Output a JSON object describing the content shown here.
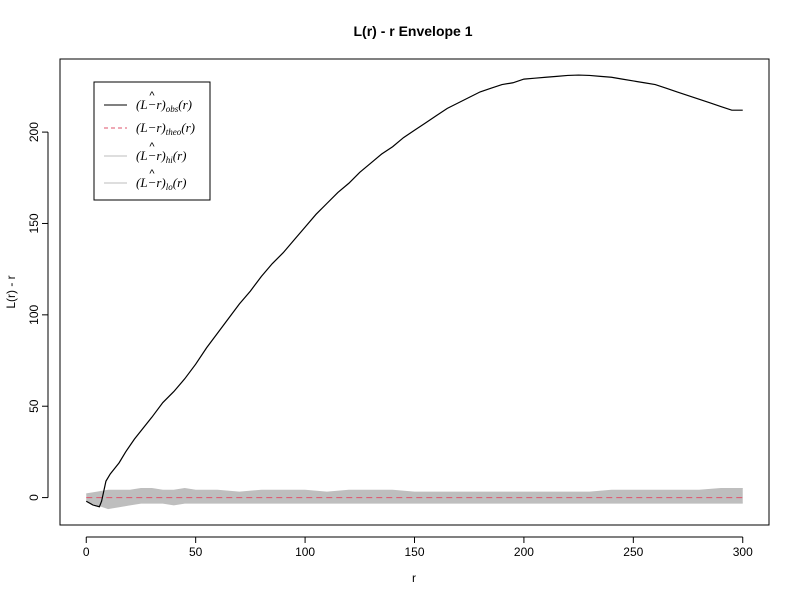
{
  "chart_data": {
    "type": "line",
    "title": "L(r) - r Envelope 1",
    "xlabel": "r",
    "ylabel": "L(r) - r",
    "xlim": [
      -12,
      312
    ],
    "ylim": [
      -15,
      240
    ],
    "x_ticks": [
      0,
      50,
      100,
      150,
      200,
      250,
      300
    ],
    "y_ticks": [
      0,
      50,
      100,
      150,
      200
    ],
    "grid": false,
    "legend_position": "top-left",
    "series": [
      {
        "name": "obs",
        "color": "#000000",
        "dash": "solid",
        "points": [
          [
            0,
            -2
          ],
          [
            3,
            -4
          ],
          [
            6,
            -5
          ],
          [
            7,
            -2
          ],
          [
            9,
            9
          ],
          [
            11,
            13
          ],
          [
            13,
            16
          ],
          [
            15,
            19
          ],
          [
            18,
            25
          ],
          [
            22,
            32
          ],
          [
            26,
            38
          ],
          [
            30,
            44
          ],
          [
            35,
            52
          ],
          [
            40,
            58
          ],
          [
            45,
            65
          ],
          [
            50,
            73
          ],
          [
            55,
            82
          ],
          [
            60,
            90
          ],
          [
            65,
            98
          ],
          [
            70,
            106
          ],
          [
            75,
            113
          ],
          [
            80,
            121
          ],
          [
            85,
            128
          ],
          [
            90,
            134
          ],
          [
            95,
            141
          ],
          [
            100,
            148
          ],
          [
            105,
            155
          ],
          [
            110,
            161
          ],
          [
            115,
            167
          ],
          [
            120,
            172
          ],
          [
            125,
            178
          ],
          [
            130,
            183
          ],
          [
            135,
            188
          ],
          [
            140,
            192
          ],
          [
            145,
            197
          ],
          [
            150,
            201
          ],
          [
            155,
            205
          ],
          [
            160,
            209
          ],
          [
            165,
            213
          ],
          [
            170,
            216
          ],
          [
            175,
            219
          ],
          [
            180,
            222
          ],
          [
            185,
            224
          ],
          [
            190,
            226
          ],
          [
            195,
            227
          ],
          [
            200,
            229
          ],
          [
            205,
            229.5
          ],
          [
            210,
            230
          ],
          [
            215,
            230.5
          ],
          [
            220,
            231
          ],
          [
            225,
            231.2
          ],
          [
            230,
            231
          ],
          [
            235,
            230.5
          ],
          [
            240,
            230
          ],
          [
            245,
            229
          ],
          [
            250,
            228
          ],
          [
            255,
            227
          ],
          [
            260,
            226
          ],
          [
            265,
            224
          ],
          [
            270,
            222
          ],
          [
            275,
            220
          ],
          [
            280,
            218
          ],
          [
            285,
            216
          ],
          [
            290,
            214
          ],
          [
            295,
            212
          ],
          [
            300,
            212
          ]
        ]
      },
      {
        "name": "theo",
        "color": "#df536b",
        "dash": "dashed",
        "points": [
          [
            0,
            0
          ],
          [
            300,
            0
          ]
        ]
      },
      {
        "name": "hi",
        "color": "#bebebe",
        "dash": "solid",
        "points": [
          [
            0,
            2
          ],
          [
            5,
            3
          ],
          [
            10,
            4
          ],
          [
            15,
            4
          ],
          [
            20,
            4
          ],
          [
            25,
            5
          ],
          [
            30,
            5
          ],
          [
            35,
            4
          ],
          [
            40,
            4
          ],
          [
            45,
            5
          ],
          [
            50,
            4
          ],
          [
            60,
            4
          ],
          [
            70,
            3
          ],
          [
            80,
            4
          ],
          [
            90,
            4
          ],
          [
            100,
            4
          ],
          [
            110,
            3
          ],
          [
            120,
            4
          ],
          [
            130,
            4
          ],
          [
            140,
            4
          ],
          [
            150,
            3
          ],
          [
            160,
            3
          ],
          [
            170,
            3
          ],
          [
            180,
            3
          ],
          [
            190,
            3
          ],
          [
            200,
            3
          ],
          [
            210,
            3
          ],
          [
            220,
            3
          ],
          [
            230,
            3
          ],
          [
            240,
            4
          ],
          [
            250,
            4
          ],
          [
            260,
            4
          ],
          [
            270,
            4
          ],
          [
            280,
            4
          ],
          [
            290,
            5
          ],
          [
            300,
            5
          ]
        ]
      },
      {
        "name": "lo",
        "color": "#bebebe",
        "dash": "solid",
        "points": [
          [
            0,
            -2
          ],
          [
            5,
            -4
          ],
          [
            10,
            -6
          ],
          [
            15,
            -5
          ],
          [
            20,
            -4
          ],
          [
            25,
            -3
          ],
          [
            30,
            -3
          ],
          [
            35,
            -3
          ],
          [
            40,
            -4
          ],
          [
            45,
            -3
          ],
          [
            50,
            -3
          ],
          [
            60,
            -3
          ],
          [
            70,
            -3
          ],
          [
            80,
            -3
          ],
          [
            90,
            -3
          ],
          [
            100,
            -3
          ],
          [
            110,
            -3
          ],
          [
            120,
            -3
          ],
          [
            130,
            -3
          ],
          [
            140,
            -3
          ],
          [
            150,
            -3
          ],
          [
            160,
            -3
          ],
          [
            170,
            -3
          ],
          [
            180,
            -3
          ],
          [
            190,
            -3
          ],
          [
            200,
            -3
          ],
          [
            210,
            -3
          ],
          [
            220,
            -3
          ],
          [
            230,
            -3
          ],
          [
            240,
            -3
          ],
          [
            250,
            -3
          ],
          [
            260,
            -3
          ],
          [
            270,
            -3
          ],
          [
            280,
            -3
          ],
          [
            290,
            -3
          ],
          [
            300,
            -3
          ]
        ]
      }
    ],
    "legend": [
      {
        "series": "obs",
        "base": "(L",
        "hat": "^",
        "mid": "−r)",
        "sub": "obs",
        "tail": "(r)"
      },
      {
        "series": "theo",
        "base": "(L",
        "hat": "",
        "mid": "−r)",
        "sub": "theo",
        "tail": "(r)"
      },
      {
        "series": "hi",
        "base": "(L",
        "hat": "^",
        "mid": "−r)",
        "sub": "hi",
        "tail": "(r)"
      },
      {
        "series": "lo",
        "base": "(L",
        "hat": "^",
        "mid": "−r)",
        "sub": "lo",
        "tail": "(r)"
      }
    ]
  }
}
